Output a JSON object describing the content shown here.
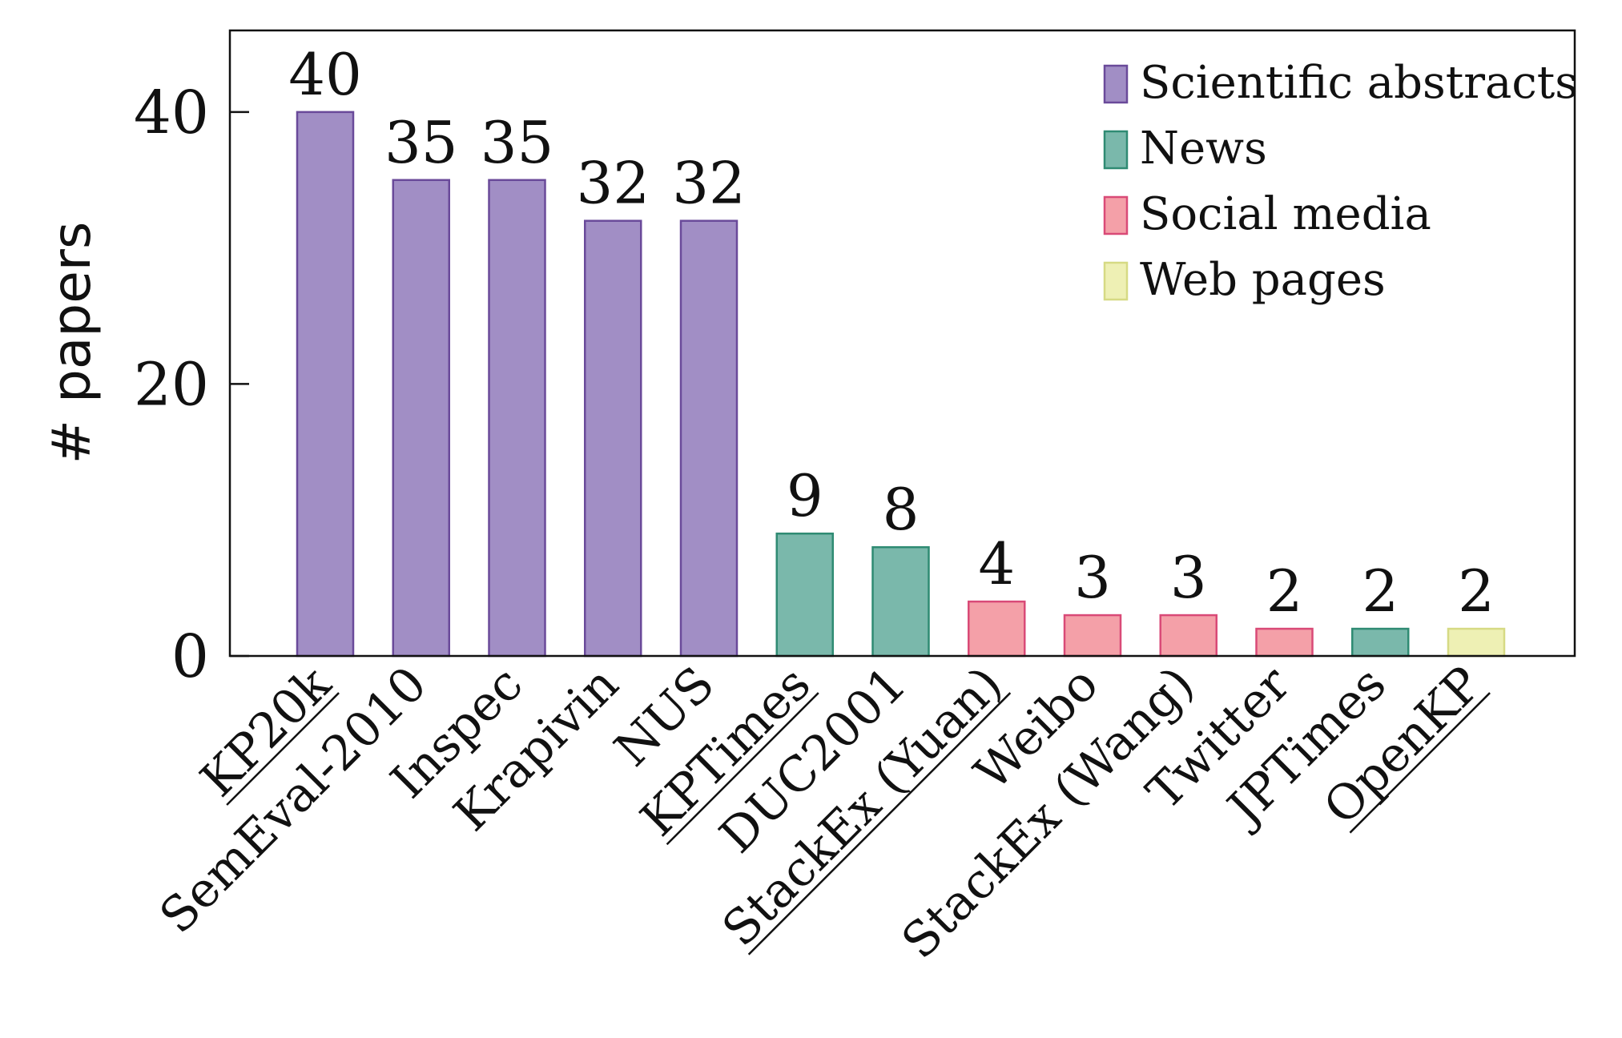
{
  "chart_data": {
    "type": "bar",
    "title": "",
    "xlabel": "",
    "ylabel": "# papers",
    "ylim": [
      0,
      46
    ],
    "yticks": [
      0,
      20,
      40
    ],
    "grid": false,
    "legend_position": "top-right",
    "groups": [
      {
        "name": "Scientific abstracts",
        "fill": "#a18ec5",
        "stroke": "#6a4a9a"
      },
      {
        "name": "News",
        "fill": "#7ab8ab",
        "stroke": "#2f8b73"
      },
      {
        "name": "Social media",
        "fill": "#f4a0a8",
        "stroke": "#d94a77"
      },
      {
        "name": "Web pages",
        "fill": "#eef0b4",
        "stroke": "#d6da84"
      }
    ],
    "bars": [
      {
        "category": "KP20k",
        "value": 40,
        "group": "Scientific abstracts",
        "underlined": true
      },
      {
        "category": "SemEval-2010",
        "value": 35,
        "group": "Scientific abstracts",
        "underlined": false
      },
      {
        "category": "Inspec",
        "value": 35,
        "group": "Scientific abstracts",
        "underlined": false
      },
      {
        "category": "Krapivin",
        "value": 32,
        "group": "Scientific abstracts",
        "underlined": false
      },
      {
        "category": "NUS",
        "value": 32,
        "group": "Scientific abstracts",
        "underlined": false
      },
      {
        "category": "KPTimes",
        "value": 9,
        "group": "News",
        "underlined": true
      },
      {
        "category": "DUC2001",
        "value": 8,
        "group": "News",
        "underlined": false
      },
      {
        "category": "StackEx (Yuan)",
        "value": 4,
        "group": "Social media",
        "underlined": true
      },
      {
        "category": "Weibo",
        "value": 3,
        "group": "Social media",
        "underlined": false
      },
      {
        "category": "StackEx (Wang)",
        "value": 3,
        "group": "Social media",
        "underlined": false
      },
      {
        "category": "Twitter",
        "value": 2,
        "group": "Social media",
        "underlined": false
      },
      {
        "category": "JPTimes",
        "value": 2,
        "group": "News",
        "underlined": false
      },
      {
        "category": "OpenKP",
        "value": 2,
        "group": "Web pages",
        "underlined": true
      }
    ]
  }
}
